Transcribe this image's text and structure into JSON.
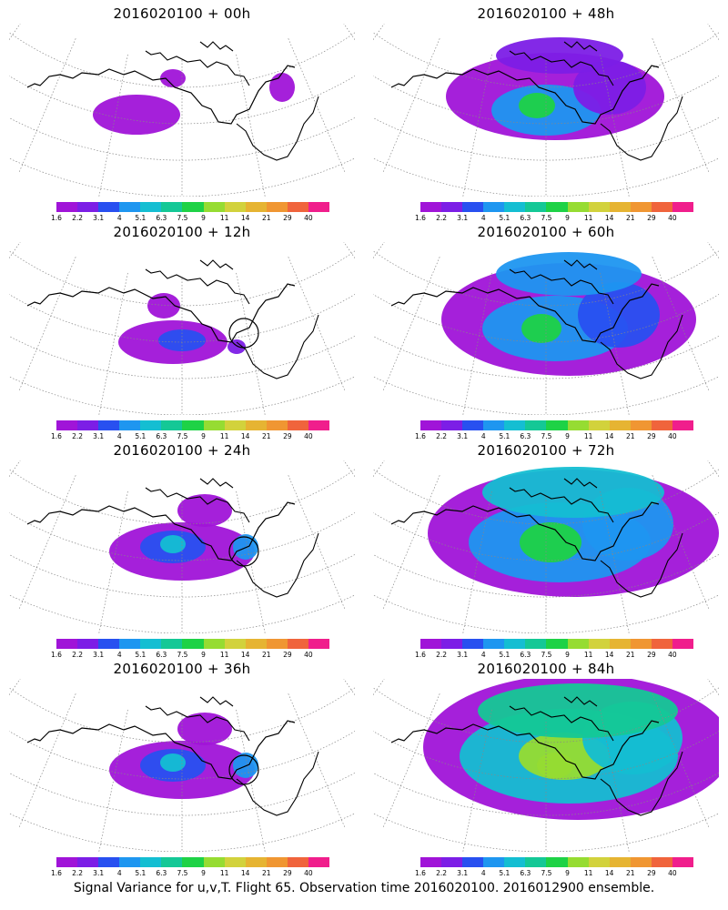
{
  "palette": [
    "#a014d8",
    "#7c1ee6",
    "#2850f0",
    "#1e96f0",
    "#14bed2",
    "#14c896",
    "#1ed246",
    "#96dc32",
    "#d2d23c",
    "#e6b432",
    "#f09632",
    "#f0643c",
    "#f01e8c"
  ],
  "colorbar_labels": [
    "1.6",
    "2.2",
    "3.1",
    "4",
    "5.1",
    "6.3",
    "7.5",
    "9",
    "11",
    "14",
    "21",
    "29",
    "40"
  ],
  "panels": [
    {
      "title": "2016020100 + 00h",
      "col": 0,
      "row": 0,
      "level": 0
    },
    {
      "title": "2016020100 + 48h",
      "col": 1,
      "row": 0,
      "level": 3
    },
    {
      "title": "2016020100 + 12h",
      "col": 0,
      "row": 1,
      "level": 1
    },
    {
      "title": "2016020100 + 60h",
      "col": 1,
      "row": 1,
      "level": 4
    },
    {
      "title": "2016020100 + 24h",
      "col": 0,
      "row": 2,
      "level": 2
    },
    {
      "title": "2016020100 + 72h",
      "col": 1,
      "row": 2,
      "level": 5
    },
    {
      "title": "2016020100 + 36h",
      "col": 0,
      "row": 3,
      "level": 2
    },
    {
      "title": "2016020100 + 84h",
      "col": 1,
      "row": 3,
      "level": 6
    }
  ],
  "footer": "Signal Variance for u,v,T. Flight 65. Observation time 2016020100. 2016012900 ensemble."
}
